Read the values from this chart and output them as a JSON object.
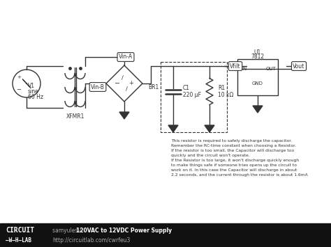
{
  "bg_color": "#ffffff",
  "footer_bg": "#111111",
  "circuit_color": "#333333",
  "annotation_text": "This resistor is required to safely discharge the capacitor.\nRemember the RC-time constant when choosing a Resistor.\nIf the resistor is too small, the Capacitor will discharge too\nquickly and the circuit won't operate.\nIf the Resistor is too large, it won't discharge quickly enough\nto make things safe if someone tries opens up the circuit to\nwork on it. In this case the Capacitor will discharge in about\n2.2 seconds, and the current through the resistor is about 1.6mA",
  "footer_text1_prefix": "samyules / ",
  "footer_text1_bold": "120VAC to 12VDC Power Supply",
  "footer_text2": "http://circuitlab.com/cwrfeu3"
}
